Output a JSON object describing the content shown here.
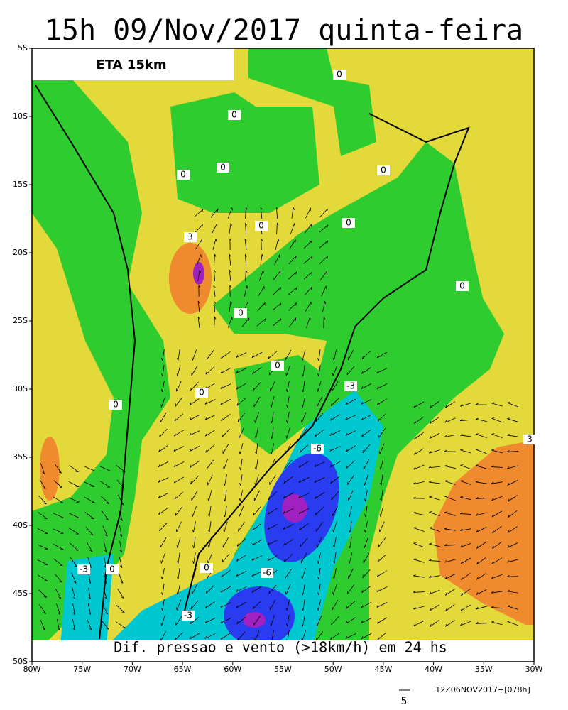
{
  "header": {
    "title": "15h 09/Nov/2017 quinta-feira",
    "model": "ETA 15km"
  },
  "caption": "Dif. pressao e vento (>18km/h) em 24 hs",
  "lat_labels": [
    "5S",
    "10S",
    "15S",
    "20S",
    "25S",
    "30S",
    "35S",
    "40S",
    "45S",
    "50S"
  ],
  "lon_labels": [
    "80W",
    "75W",
    "70W",
    "65W",
    "60W",
    "55W",
    "50W",
    "45W",
    "40W",
    "35W",
    "30W"
  ],
  "contour_labels": [
    "0",
    "0",
    "0",
    "0",
    "0",
    "0",
    "0",
    "0",
    "0",
    "0",
    "0",
    "0",
    "0",
    "0",
    "3",
    "3",
    "-3",
    "-3",
    "-3",
    "-6",
    "-6"
  ],
  "vector_scale": "5",
  "footer": "12Z06NOV2017+[078h]"
}
